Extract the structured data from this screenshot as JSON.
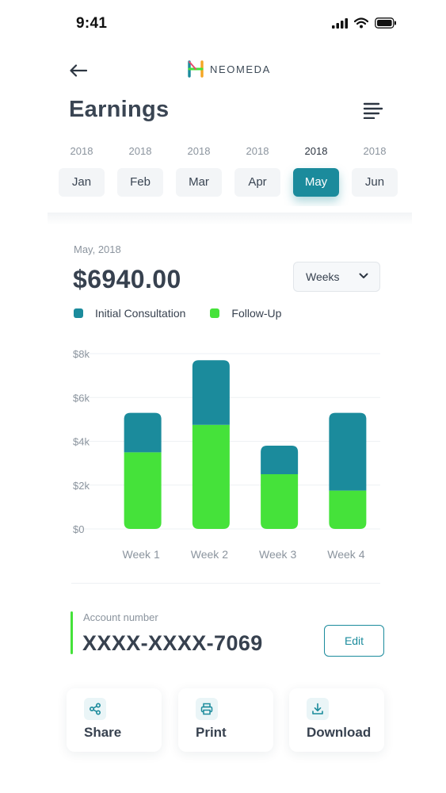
{
  "status_bar": {
    "time": "9:41",
    "icons": [
      "signal-icon",
      "wifi-icon",
      "battery-icon"
    ]
  },
  "header": {
    "back_icon": "arrow-left-icon",
    "logo_text": "NEOMEDA",
    "menu_icon": "align-left-menu-icon"
  },
  "page_title": "Earnings",
  "months": [
    {
      "year": "2018",
      "label": "Jan",
      "active": false
    },
    {
      "year": "2018",
      "label": "Feb",
      "active": false
    },
    {
      "year": "2018",
      "label": "Mar",
      "active": false
    },
    {
      "year": "2018",
      "label": "Apr",
      "active": false
    },
    {
      "year": "2018",
      "label": "May",
      "active": true
    },
    {
      "year": "2018",
      "label": "Jun",
      "active": false
    }
  ],
  "summary": {
    "period": "May, 2018",
    "total": "$6940.00",
    "range_select": "Weeks"
  },
  "legend": [
    {
      "label": "Initial Consultation",
      "color": "#1b8b9c"
    },
    {
      "label": "Follow-Up",
      "color": "#45e23a"
    }
  ],
  "chart_data": {
    "type": "bar",
    "stacked": true,
    "categories": [
      "Week 1",
      "Week 2",
      "Week 3",
      "Week 4"
    ],
    "series": [
      {
        "name": "Follow-Up",
        "color": "#45e23a",
        "values": [
          3500,
          4750,
          2500,
          1750
        ]
      },
      {
        "name": "Initial Consultation",
        "color": "#1b8b9c",
        "values": [
          1800,
          2950,
          1300,
          3550
        ]
      }
    ],
    "y_ticks": [
      "$0",
      "$2k",
      "$4k",
      "$6k",
      "$8k"
    ],
    "ylim": [
      0,
      8000
    ],
    "grid": true
  },
  "account": {
    "label": "Account number",
    "number": "XXXX-XXXX-7069",
    "edit_label": "Edit"
  },
  "actions": [
    {
      "label": "Share",
      "icon": "share-icon"
    },
    {
      "label": "Print",
      "icon": "printer-icon"
    },
    {
      "label": "Download",
      "icon": "download-icon"
    }
  ],
  "colors": {
    "accent": "#1b8b9c",
    "green": "#45e23a",
    "text": "#37414f",
    "muted": "#8b949e"
  }
}
